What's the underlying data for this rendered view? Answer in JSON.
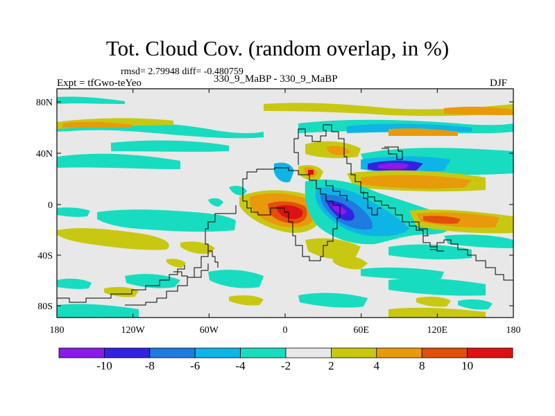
{
  "header": {
    "title": "Tot. Cloud Cov. (random overlap, in %)",
    "stats": "rmsd= 2.79948 diff= -0.480759",
    "expt": "Expt = tfGwo-teYeo",
    "case": "330_9_MaBP - 330_9_MaBP",
    "season": "DJF"
  },
  "axes": {
    "lat_ticks": [
      "80N",
      "40N",
      "0",
      "40S",
      "80S"
    ],
    "lon_ticks": [
      "180",
      "120W",
      "60W",
      "0",
      "60E",
      "120E",
      "180"
    ]
  },
  "colorbar": {
    "labels": [
      "-10",
      "-8",
      "-6",
      "-4",
      "-2",
      "2",
      "4",
      "8",
      "10"
    ],
    "colors": [
      "#8a1be8",
      "#3223e0",
      "#1f7be0",
      "#0fb4e6",
      "#17dcc0",
      "#e8e8e8",
      "#c8c812",
      "#e89a0a",
      "#e0500a",
      "#dc1212"
    ]
  },
  "colors": {
    "ocean_bg": "#e8e8e8",
    "coastline": "#000000"
  }
}
